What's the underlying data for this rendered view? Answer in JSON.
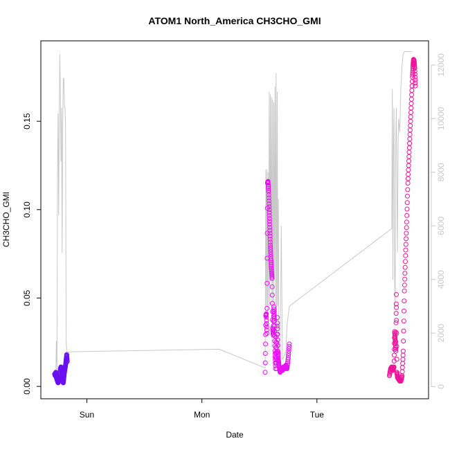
{
  "chart_data": {
    "type": "scatter",
    "title": "ATOM1 North_America CH3CHO_GMI",
    "xlabel": "Date",
    "ylabel": "CH3CHO_GMI",
    "x_axis": {
      "unit": "day",
      "ticks": [
        {
          "label": "Sun",
          "value": 1
        },
        {
          "label": "Mon",
          "value": 2
        },
        {
          "label": "Tue",
          "value": 3
        }
      ],
      "range": [
        0.6,
        3.97
      ]
    },
    "y_axis_left": {
      "ticks": [
        {
          "label": "0.00",
          "value": 0.0
        },
        {
          "label": "0.05",
          "value": 0.05
        },
        {
          "label": "0.10",
          "value": 0.1
        },
        {
          "label": "0.15",
          "value": 0.15
        }
      ],
      "range": [
        -0.007,
        0.1955
      ]
    },
    "y_axis_right": {
      "color": "#c8c8c8",
      "ticks": [
        {
          "label": "0",
          "value": 0
        },
        {
          "label": "2000",
          "value": 2000
        },
        {
          "label": "4000",
          "value": 4000
        },
        {
          "label": "6000",
          "value": 6000
        },
        {
          "label": "8000",
          "value": 8000
        },
        {
          "label": "10000",
          "value": 10000
        },
        {
          "label": "12000",
          "value": 12000
        }
      ],
      "range": [
        -450,
        12900
      ]
    },
    "altitude_line": {
      "color": "#c8c8c8",
      "points": [
        [
          0.73,
          400
        ],
        [
          0.735,
          1700
        ],
        [
          0.74,
          600
        ],
        [
          0.745,
          8000
        ],
        [
          0.75,
          10200
        ],
        [
          0.755,
          6400
        ],
        [
          0.76,
          10200
        ],
        [
          0.765,
          12400
        ],
        [
          0.77,
          11000
        ],
        [
          0.775,
          8400
        ],
        [
          0.78,
          10400
        ],
        [
          0.785,
          5000
        ],
        [
          0.79,
          9800
        ],
        [
          0.795,
          11500
        ],
        [
          0.8,
          11500
        ],
        [
          0.805,
          10400
        ],
        [
          0.81,
          10400
        ],
        [
          0.815,
          9800
        ],
        [
          0.82,
          1700
        ],
        [
          0.825,
          1300
        ],
        [
          0.83,
          1300
        ],
        [
          2.15,
          1400
        ],
        [
          2.55,
          700
        ],
        [
          2.555,
          8100
        ],
        [
          2.56,
          3000
        ],
        [
          2.565,
          8100
        ],
        [
          2.57,
          2000
        ],
        [
          2.575,
          8000
        ],
        [
          2.58,
          3000
        ],
        [
          2.585,
          11000
        ],
        [
          2.59,
          3000
        ],
        [
          2.595,
          10900
        ],
        [
          2.6,
          4000
        ],
        [
          2.605,
          10800
        ],
        [
          2.61,
          1500
        ],
        [
          2.615,
          10700
        ],
        [
          2.62,
          2500
        ],
        [
          2.625,
          10600
        ],
        [
          2.63,
          4000
        ],
        [
          2.635,
          11200
        ],
        [
          2.64,
          2500
        ],
        [
          2.645,
          11700
        ],
        [
          2.65,
          1500
        ],
        [
          2.655,
          11000
        ],
        [
          2.66,
          3000
        ],
        [
          2.665,
          7000
        ],
        [
          2.67,
          1000
        ],
        [
          2.68,
          700
        ],
        [
          2.69,
          6000
        ],
        [
          2.7,
          1000
        ],
        [
          2.73,
          1300
        ],
        [
          2.74,
          2300
        ],
        [
          2.76,
          3000
        ],
        [
          3.65,
          5900
        ],
        [
          3.655,
          11100
        ],
        [
          3.66,
          4000
        ],
        [
          3.665,
          9000
        ],
        [
          3.67,
          10400
        ],
        [
          3.675,
          4000
        ],
        [
          3.68,
          3000
        ],
        [
          3.685,
          9000
        ],
        [
          3.69,
          10400
        ],
        [
          3.7,
          5000
        ],
        [
          3.705,
          9000
        ],
        [
          3.71,
          10000
        ],
        [
          3.72,
          9500
        ],
        [
          3.73,
          11200
        ],
        [
          3.74,
          12000
        ],
        [
          3.75,
          12400
        ],
        [
          3.76,
          12500
        ],
        [
          3.78,
          12500
        ],
        [
          3.8,
          12500
        ],
        [
          3.83,
          12500
        ]
      ]
    },
    "series": [
      {
        "color": "#6a10f0",
        "points": [
          [
            0.72,
            0.007
          ],
          [
            0.725,
            0.006
          ],
          [
            0.73,
            0.008
          ],
          [
            0.735,
            0.005
          ],
          [
            0.74,
            0.004
          ],
          [
            0.745,
            0.003
          ],
          [
            0.75,
            0.002
          ],
          [
            0.755,
            0.003
          ],
          [
            0.76,
            0.004
          ],
          [
            0.765,
            0.006
          ],
          [
            0.77,
            0.01
          ],
          [
            0.775,
            0.011
          ],
          [
            0.78,
            0.009
          ],
          [
            0.785,
            0.005
          ],
          [
            0.79,
            0.003
          ],
          [
            0.795,
            0.002
          ],
          [
            0.8,
            0.005
          ],
          [
            0.805,
            0.008
          ],
          [
            0.81,
            0.01
          ],
          [
            0.815,
            0.012
          ],
          [
            0.82,
            0.015
          ],
          [
            0.825,
            0.018
          ],
          [
            0.83,
            0.014
          ]
        ]
      },
      {
        "color": "#e810f0",
        "points": [
          [
            2.55,
            0.008
          ],
          [
            2.555,
            0.04
          ],
          [
            2.56,
            0.041
          ],
          [
            2.565,
            0.03
          ],
          [
            2.57,
            0.115
          ],
          [
            2.575,
            0.116
          ],
          [
            2.58,
            0.11
          ],
          [
            2.585,
            0.1
          ],
          [
            2.59,
            0.09
          ],
          [
            2.595,
            0.08
          ],
          [
            2.6,
            0.072
          ],
          [
            2.605,
            0.066
          ],
          [
            2.61,
            0.061
          ],
          [
            2.615,
            0.033
          ],
          [
            2.62,
            0.029
          ],
          [
            2.625,
            0.045
          ],
          [
            2.63,
            0.037
          ],
          [
            2.635,
            0.02
          ],
          [
            2.64,
            0.01
          ],
          [
            2.645,
            0.028
          ],
          [
            2.65,
            0.01
          ],
          [
            2.655,
            0.039
          ],
          [
            2.66,
            0.02
          ],
          [
            2.665,
            0.015
          ],
          [
            2.67,
            0.012
          ],
          [
            2.68,
            0.008
          ],
          [
            2.69,
            0.01
          ],
          [
            2.7,
            0.009
          ],
          [
            2.71,
            0.011
          ],
          [
            2.72,
            0.01
          ],
          [
            2.73,
            0.012
          ],
          [
            2.74,
            0.01
          ],
          [
            2.75,
            0.016
          ],
          [
            2.76,
            0.024
          ]
        ]
      },
      {
        "color": "#f0129a",
        "points": [
          [
            3.63,
            0.006
          ],
          [
            3.64,
            0.01
          ],
          [
            3.65,
            0.011
          ],
          [
            3.66,
            0.009
          ],
          [
            3.67,
            0.011
          ],
          [
            3.675,
            0.031
          ],
          [
            3.68,
            0.026
          ],
          [
            3.685,
            0.02
          ],
          [
            3.69,
            0.052
          ],
          [
            3.695,
            0.008
          ],
          [
            3.7,
            0.005
          ],
          [
            3.71,
            0.004
          ],
          [
            3.72,
            0.003
          ],
          [
            3.73,
            0.003
          ],
          [
            3.74,
            0.006
          ],
          [
            3.75,
            0.02
          ],
          [
            3.76,
            0.054
          ],
          [
            3.77,
            0.074
          ],
          [
            3.78,
            0.093
          ],
          [
            3.79,
            0.115
          ],
          [
            3.8,
            0.13
          ],
          [
            3.81,
            0.145
          ],
          [
            3.82,
            0.16
          ],
          [
            3.83,
            0.175
          ],
          [
            3.835,
            0.182
          ],
          [
            3.84,
            0.185
          ],
          [
            3.845,
            0.184
          ],
          [
            3.85,
            0.18
          ],
          [
            3.855,
            0.17
          ]
        ]
      }
    ]
  }
}
